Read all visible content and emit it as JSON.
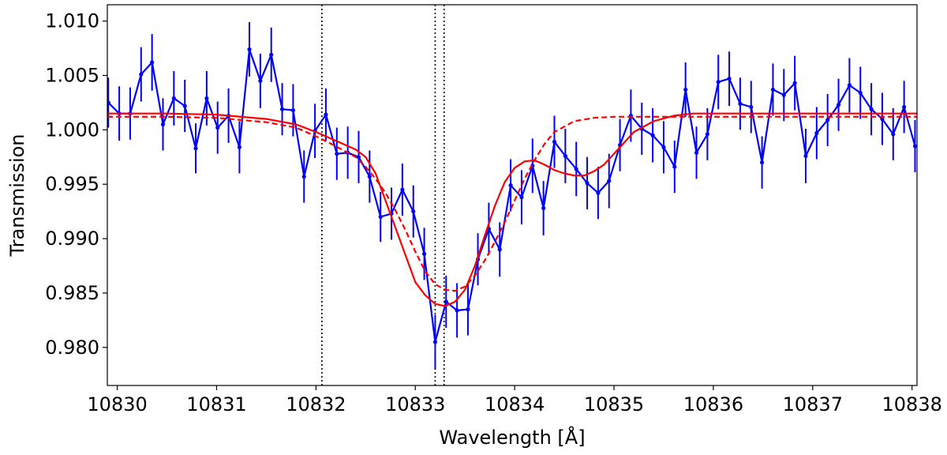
{
  "chart_data": {
    "type": "line",
    "xlabel": "Wavelength [Å]",
    "ylabel": "Transmission",
    "xlim": [
      10829.9,
      10838.05
    ],
    "ylim": [
      0.9765,
      1.0115
    ],
    "xticks": [
      10830,
      10831,
      10832,
      10833,
      10834,
      10835,
      10836,
      10837,
      10838
    ],
    "xtick_labels": [
      "10830",
      "10831",
      "10832",
      "10833",
      "10834",
      "10835",
      "10836",
      "10837",
      "10838"
    ],
    "yticks": [
      0.98,
      0.985,
      0.99,
      0.995,
      1.0,
      1.005,
      1.01
    ],
    "ytick_labels": [
      "0.980",
      "0.985",
      "0.990",
      "0.995",
      "1.000",
      "1.005",
      "1.010"
    ],
    "grid": false,
    "vertical_lines": [
      10832.06,
      10833.2,
      10833.29
    ],
    "series": [
      {
        "kind": "data-with-errorbars",
        "color": "#0000ff",
        "x": [
          10829.91,
          10830.02,
          10830.13,
          10830.24,
          10830.35,
          10830.46,
          10830.57,
          10830.68,
          10830.79,
          10830.9,
          10831.01,
          10831.12,
          10831.23,
          10831.33,
          10831.44,
          10831.55,
          10831.66,
          10831.77,
          10831.88,
          10831.99,
          10832.1,
          10832.21,
          10832.32,
          10832.43,
          10832.54,
          10832.65,
          10832.76,
          10832.87,
          10832.98,
          10833.09,
          10833.2,
          10833.31,
          10833.42,
          10833.53,
          10833.63,
          10833.74,
          10833.85,
          10833.96,
          10834.07,
          10834.18,
          10834.29,
          10834.4,
          10834.51,
          10834.62,
          10834.73,
          10834.84,
          10834.95,
          10835.06,
          10835.17,
          10835.28,
          10835.39,
          10835.5,
          10835.61,
          10835.72,
          10835.83,
          10835.94,
          10836.05,
          10836.16,
          10836.27,
          10836.38,
          10836.49,
          10836.6,
          10836.71,
          10836.82,
          10836.93,
          10837.04,
          10837.15,
          10837.26,
          10837.37,
          10837.48,
          10837.59,
          10837.7,
          10837.81,
          10837.92,
          10838.03
        ],
        "y": [
          1.0025,
          1.0015,
          1.0015,
          1.0051,
          1.0062,
          1.0005,
          1.0029,
          1.0022,
          0.9983,
          1.0029,
          1.0002,
          1.0013,
          0.9984,
          1.0074,
          1.0045,
          1.0069,
          1.0019,
          1.0018,
          0.9957,
          0.9999,
          1.0014,
          0.9978,
          0.9979,
          0.9975,
          0.9957,
          0.992,
          0.9923,
          0.9945,
          0.9925,
          0.9886,
          0.9805,
          0.9842,
          0.9834,
          0.9835,
          0.9881,
          0.9909,
          0.989,
          0.9949,
          0.9938,
          0.9967,
          0.9928,
          0.9989,
          0.9976,
          0.9964,
          0.9951,
          0.9942,
          0.9953,
          0.9986,
          1.0013,
          1.0001,
          0.9995,
          0.9984,
          0.9966,
          1.0037,
          0.9979,
          0.9996,
          1.0044,
          1.0047,
          1.0024,
          1.0021,
          0.997,
          1.0037,
          1.0032,
          1.0043,
          0.9976,
          0.9997,
          1.0009,
          1.0023,
          1.0041,
          1.0034,
          1.0019,
          1.001,
          0.9996,
          1.0021,
          0.9985
        ],
        "err": [
          0.0023,
          0.0025,
          0.0024,
          0.0025,
          0.0026,
          0.0024,
          0.0025,
          0.0024,
          0.0023,
          0.0025,
          0.0024,
          0.0025,
          0.0024,
          0.0025,
          0.0025,
          0.0025,
          0.0024,
          0.0024,
          0.0024,
          0.0025,
          0.0024,
          0.0024,
          0.0024,
          0.0024,
          0.0024,
          0.0023,
          0.0024,
          0.0024,
          0.0024,
          0.0024,
          0.0025,
          0.0024,
          0.0025,
          0.0024,
          0.0024,
          0.0024,
          0.0025,
          0.0024,
          0.0025,
          0.0025,
          0.0025,
          0.0024,
          0.0025,
          0.0025,
          0.0024,
          0.0024,
          0.0025,
          0.0024,
          0.0024,
          0.0024,
          0.0025,
          0.0024,
          0.0024,
          0.0025,
          0.0024,
          0.0024,
          0.0025,
          0.0025,
          0.0024,
          0.0024,
          0.0024,
          0.0024,
          0.0024,
          0.0025,
          0.0025,
          0.0024,
          0.0024,
          0.0024,
          0.0025,
          0.0024,
          0.0024,
          0.0024,
          0.0024,
          0.0024,
          0.0024
        ]
      },
      {
        "kind": "model-solid",
        "color": "#ff0000",
        "x": [
          10829.9,
          10830.5,
          10831.0,
          10831.5,
          10831.8,
          10832.0,
          10832.2,
          10832.4,
          10832.5,
          10832.6,
          10832.7,
          10832.8,
          10832.9,
          10833.0,
          10833.1,
          10833.2,
          10833.3,
          10833.4,
          10833.5,
          10833.6,
          10833.7,
          10833.8,
          10833.9,
          10834.0,
          10834.1,
          10834.2,
          10834.3,
          10834.4,
          10834.5,
          10834.6,
          10834.7,
          10834.8,
          10834.9,
          10835.0,
          10835.1,
          10835.2,
          10835.4,
          10835.6,
          10835.8,
          10836.0,
          10836.5,
          10837.0,
          10837.5,
          10838.05
        ],
        "y": [
          1.0015,
          1.0015,
          1.0014,
          1.001,
          1.0005,
          0.9998,
          0.999,
          0.9982,
          0.9975,
          0.996,
          0.9935,
          0.991,
          0.9885,
          0.986,
          0.9848,
          0.984,
          0.9838,
          0.9842,
          0.9853,
          0.9875,
          0.9903,
          0.993,
          0.9952,
          0.9965,
          0.9971,
          0.9972,
          0.9968,
          0.9963,
          0.996,
          0.9958,
          0.9958,
          0.9962,
          0.9968,
          0.9978,
          0.9988,
          0.9998,
          1.0008,
          1.0013,
          1.0015,
          1.0015,
          1.0015,
          1.0015,
          1.0015,
          1.0015
        ]
      },
      {
        "kind": "model-dashed",
        "color": "#ff0000",
        "x": [
          10829.9,
          10830.5,
          10831.0,
          10831.5,
          10831.8,
          10832.0,
          10832.2,
          10832.4,
          10832.5,
          10832.6,
          10832.7,
          10832.8,
          10832.9,
          10833.0,
          10833.1,
          10833.2,
          10833.3,
          10833.4,
          10833.5,
          10833.6,
          10833.7,
          10833.8,
          10833.9,
          10834.0,
          10834.1,
          10834.2,
          10834.3,
          10834.4,
          10834.6,
          10834.8,
          10835.0,
          10835.5,
          10836.0,
          10836.5,
          10837.0,
          10837.5,
          10838.05
        ],
        "y": [
          1.0012,
          1.0012,
          1.0011,
          1.0007,
          1.0002,
          0.9994,
          0.9985,
          0.9975,
          0.9966,
          0.9955,
          0.9942,
          0.9926,
          0.9908,
          0.9888,
          0.987,
          0.9858,
          0.9853,
          0.9852,
          0.9856,
          0.9866,
          0.988,
          0.9897,
          0.9915,
          0.9935,
          0.9955,
          0.9972,
          0.9987,
          0.9998,
          1.0008,
          1.0011,
          1.0012,
          1.0012,
          1.0012,
          1.0012,
          1.0012,
          1.0012,
          1.0012
        ]
      }
    ]
  }
}
